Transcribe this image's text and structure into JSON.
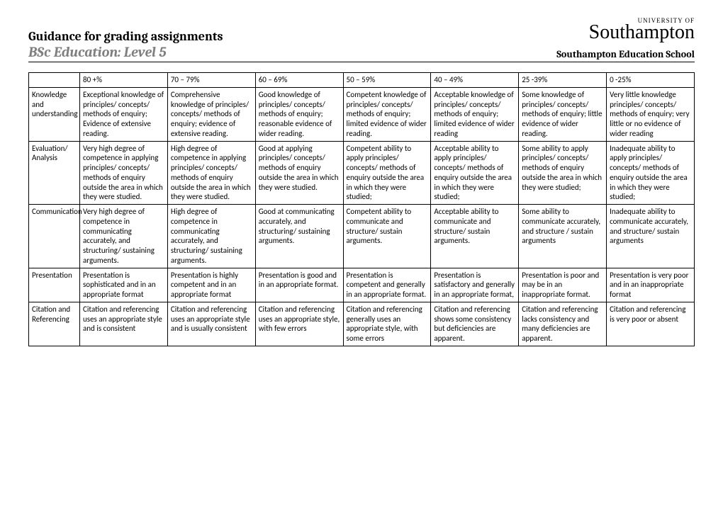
{
  "header": {
    "title": "Guidance for grading assignments",
    "subtitle": "BSc Education: Level 5",
    "school": "Southampton Education School",
    "logo_small": "UNIVERSITY OF",
    "logo_big": "Southampton"
  },
  "table": {
    "bands": [
      "80 +%",
      "70 – 79%",
      "60 – 69%",
      "50 – 59%",
      "40 – 49%",
      "25 -39%",
      "0 -25%"
    ],
    "rows": [
      {
        "category": "Knowledge and understanding",
        "cells": [
          "Exceptional knowledge of principles/ concepts/ methods of enquiry; Evidence of extensive reading.",
          "Comprehensive knowledge of principles/ concepts/ methods of enquiry; evidence of extensive reading.",
          "Good knowledge of principles/ concepts/ methods of enquiry; reasonable evidence of wider reading.",
          "Competent knowledge of principles/ concepts/ methods of enquiry; limited evidence of wider reading.",
          "Acceptable knowledge  of principles/ concepts/ methods of enquiry; limited evidence of wider reading",
          "Some knowledge of principles/ concepts/ methods of enquiry; little evidence of wider reading.",
          "Very little knowledge principles/ concepts/ methods of enquiry; very little or no evidence of wider reading"
        ]
      },
      {
        "category": "Evaluation/ Analysis",
        "cells": [
          "Very high degree of competence in applying principles/ concepts/ methods of enquiry outside the area in which they were studied.",
          "High degree of competence in applying principles/ concepts/ methods of enquiry outside the area in which they were studied.",
          "Good at applying principles/ concepts/ methods of enquiry outside the area in which they were studied.",
          "Competent ability to apply principles/ concepts/ methods of enquiry outside the area in which they were studied;",
          "Acceptable ability to apply principles/ concepts/ methods of enquiry outside the area in which they were studied;",
          "Some ability to apply principles/ concepts/ methods of enquiry outside the area in which they were studied;",
          "Inadequate ability to apply principles/ concepts/ methods of enquiry outside the area in which they were studied;"
        ]
      },
      {
        "category": "Communication",
        "cells": [
          "Very high degree of competence in communicating accurately, and structuring/ sustaining arguments.",
          "High degree of competence in communicating accurately, and structuring/ sustaining arguments.",
          "Good at communicating accurately, and structuring/ sustaining arguments.",
          "Competent ability to communicate and structure/ sustain arguments.",
          "Acceptable ability to communicate and structure/ sustain arguments.",
          "Some ability to communicate accurately, and structure / sustain arguments",
          "Inadequate ability to communicate accurately, and structure/ sustain arguments"
        ]
      },
      {
        "category": "Presentation",
        "cells": [
          "Presentation is sophisticated and in an appropriate format",
          "Presentation is highly competent and in an appropriate format",
          "Presentation is good and in an appropriate format.",
          "Presentation is competent and generally in an appropriate format.",
          "Presentation is satisfactory and generally in an appropriate format,",
          "Presentation is poor and may be in an inappropriate format.",
          "Presentation is very poor and in an inappropriate format"
        ]
      },
      {
        "category": "Citation and Referencing",
        "cells": [
          "Citation and referencing uses an appropriate style and is consistent",
          "Citation and referencing uses an appropriate style and is usually consistent",
          "Citation and referencing uses an appropriate style, with few errors",
          "Citation and referencing generally uses an appropriate style, with some errors",
          "Citation and referencing shows some consistency but deficiencies are apparent.",
          "Citation and referencing lacks consistency and many deficiencies are apparent.",
          "Citation and referencing is very poor or absent"
        ]
      }
    ]
  }
}
